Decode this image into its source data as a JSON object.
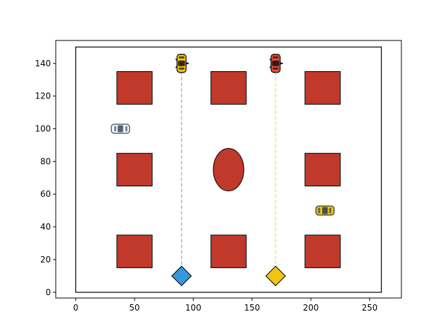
{
  "chart_data": {
    "type": "scatter",
    "title": "",
    "xlabel": "",
    "ylabel": "",
    "xlim": [
      -17,
      277
    ],
    "ylim": [
      -3.5,
      154
    ],
    "xticks": [
      0,
      50,
      100,
      150,
      200,
      250
    ],
    "yticks": [
      0,
      20,
      40,
      60,
      80,
      100,
      120,
      140
    ],
    "xtick_labels": [
      "0",
      "50",
      "100",
      "150",
      "200",
      "250"
    ],
    "ytick_labels": [
      "0",
      "20",
      "40",
      "60",
      "80",
      "100",
      "120",
      "140"
    ],
    "grid": false,
    "boundary": {
      "x": [
        0,
        260
      ],
      "y": [
        0,
        150
      ]
    },
    "obstacle_color": "#c0392b",
    "obstacles": [
      {
        "shape": "rect",
        "x": [
          35,
          65
        ],
        "y": [
          115,
          135
        ]
      },
      {
        "shape": "rect",
        "x": [
          115,
          145
        ],
        "y": [
          115,
          135
        ]
      },
      {
        "shape": "rect",
        "x": [
          195,
          225
        ],
        "y": [
          115,
          135
        ]
      },
      {
        "shape": "rect",
        "x": [
          35,
          65
        ],
        "y": [
          65,
          85
        ]
      },
      {
        "shape": "rect",
        "x": [
          195,
          225
        ],
        "y": [
          65,
          85
        ]
      },
      {
        "shape": "rect",
        "x": [
          35,
          65
        ],
        "y": [
          15,
          35
        ]
      },
      {
        "shape": "rect",
        "x": [
          115,
          145
        ],
        "y": [
          15,
          35
        ]
      },
      {
        "shape": "rect",
        "x": [
          195,
          225
        ],
        "y": [
          15,
          35
        ]
      },
      {
        "shape": "ellipse",
        "cx": 130,
        "cy": 75,
        "w": 26,
        "h": 26
      }
    ],
    "paths": [
      {
        "color": "#85c1e9",
        "x": [
          90,
          90
        ],
        "y": [
          10,
          140
        ]
      },
      {
        "color": "#f7dc6f",
        "x": [
          170,
          170
        ],
        "y": [
          10,
          140
        ]
      }
    ],
    "goals": [
      {
        "x": 90,
        "y": 10,
        "color": "#3498db"
      },
      {
        "x": 170,
        "y": 10,
        "color": "#f1c40f"
      }
    ],
    "vehicles": [
      {
        "icon": "taxi-car-icon",
        "x": 90,
        "y": 140,
        "heading": "down",
        "body": "#f1c40f",
        "trim": "#111111",
        "star": true
      },
      {
        "icon": "red-car-icon",
        "x": 170,
        "y": 140,
        "heading": "down",
        "body": "#e74c3c",
        "trim": "#111111",
        "star": true
      },
      {
        "icon": "police-car-icon",
        "x": 38,
        "y": 100,
        "heading": "left",
        "body": "#ffffff",
        "trim": "#34495e",
        "star": false
      },
      {
        "icon": "yellow-car-icon",
        "x": 212,
        "y": 50,
        "heading": "right",
        "body": "#f1c40f",
        "trim": "#2c3e50",
        "star": false
      }
    ]
  }
}
